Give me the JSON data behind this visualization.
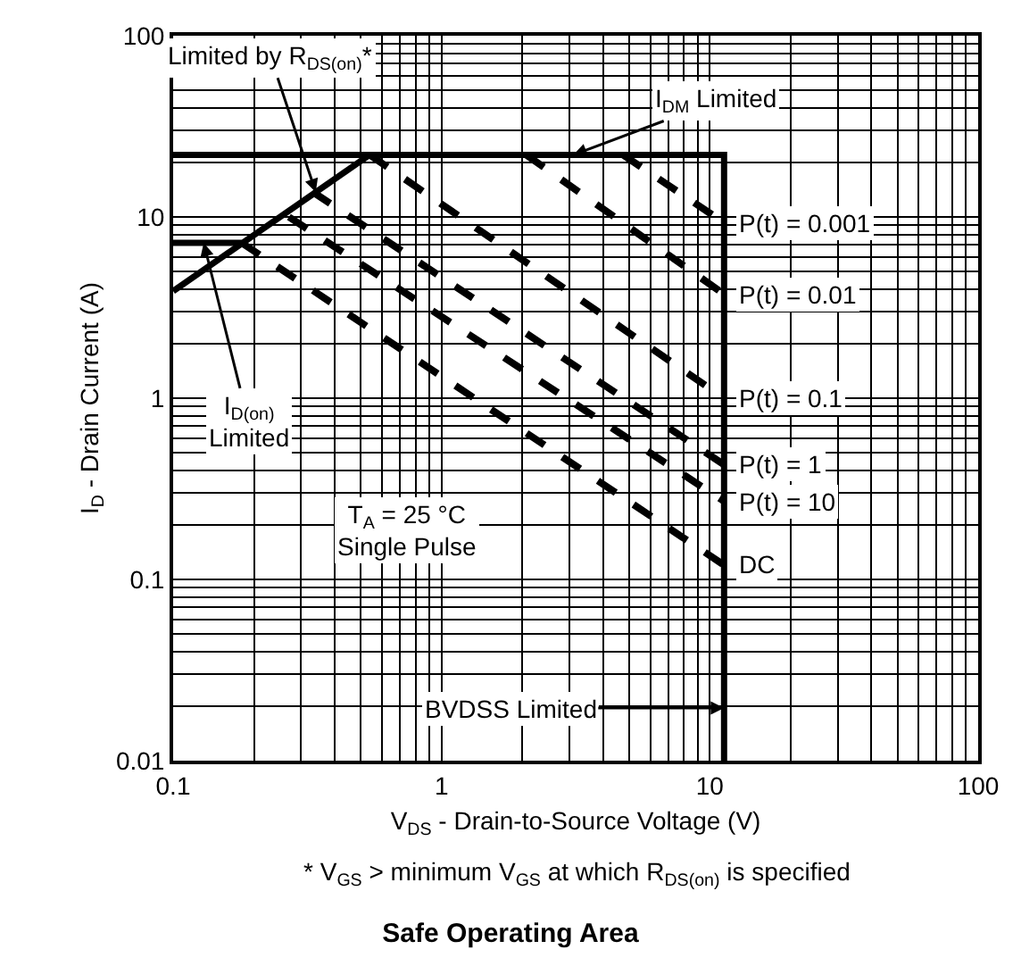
{
  "chart_data": {
    "type": "line",
    "title": "Safe Operating Area",
    "xlabel": "V$_{DS}$ - Drain-to-Source Voltage (V)",
    "ylabel": "I$_{D}$ - Drain Current (A)",
    "log": "xy",
    "grid": true,
    "xlim": [
      0.1,
      100
    ],
    "ylim": [
      0.01,
      100
    ],
    "xticks": [
      0.1,
      1,
      10,
      100
    ],
    "yticks": [
      0.01,
      0.1,
      1,
      10,
      100
    ],
    "series": [
      {
        "color": "#000000",
        "line_style": "solid",
        "x": [
          0.1,
          11.3,
          11.3
        ],
        "values": [
          22,
          22,
          0.01
        ]
      },
      {
        "color": "#000000",
        "line_style": "solid",
        "x": [
          0.1,
          0.54
        ],
        "values": [
          3.9,
          22
        ]
      },
      {
        "color": "#000000",
        "line_style": "solid",
        "x": [
          0.1,
          0.18
        ],
        "values": [
          7.2,
          7.2
        ]
      },
      {
        "name": "P(t) = 0.001",
        "color": "#000000",
        "line_style": "dashed",
        "x": [
          4.75,
          11.3
        ],
        "values": [
          22,
          9.3
        ]
      },
      {
        "name": "P(t) = 0.01",
        "color": "#000000",
        "line_style": "dashed",
        "x": [
          2.07,
          11.3
        ],
        "values": [
          22,
          3.75
        ]
      },
      {
        "name": "P(t) = 0.1",
        "color": "#000000",
        "line_style": "dashed",
        "x": [
          0.54,
          11.3
        ],
        "values": [
          22,
          1.0
        ]
      },
      {
        "name": "P(t) = 1",
        "color": "#000000",
        "line_style": "dashed",
        "x": [
          0.33,
          11.3
        ],
        "values": [
          13.8,
          0.43
        ]
      },
      {
        "name": "P(t) = 10",
        "color": "#000000",
        "line_style": "dashed",
        "x": [
          0.27,
          11.3
        ],
        "values": [
          10,
          0.27
        ]
      },
      {
        "name": "DC",
        "color": "#000000",
        "line_style": "dashed",
        "x": [
          0.18,
          11.3
        ],
        "values": [
          7.2,
          0.12
        ]
      }
    ],
    "annotations": [
      {
        "text": "Limited by R$_{DS(on)}$*",
        "x": 0.34,
        "y": 13.7
      },
      {
        "text": "I$_{DM}$ Limited",
        "x": 3.1,
        "y": 22
      },
      {
        "text": "I$_{D(on)}$\nLimited",
        "x": 0.13,
        "y": 7.2
      },
      {
        "text": "BVDSS Limited",
        "x": 11.3,
        "y": 0.0195
      },
      "T$_{A}$ = 25 °C\nSingle Pulse",
      "* V$_{GS}$ > minimum V$_{GS}$ at which R$_{DS(on)}$ is specified"
    ]
  }
}
